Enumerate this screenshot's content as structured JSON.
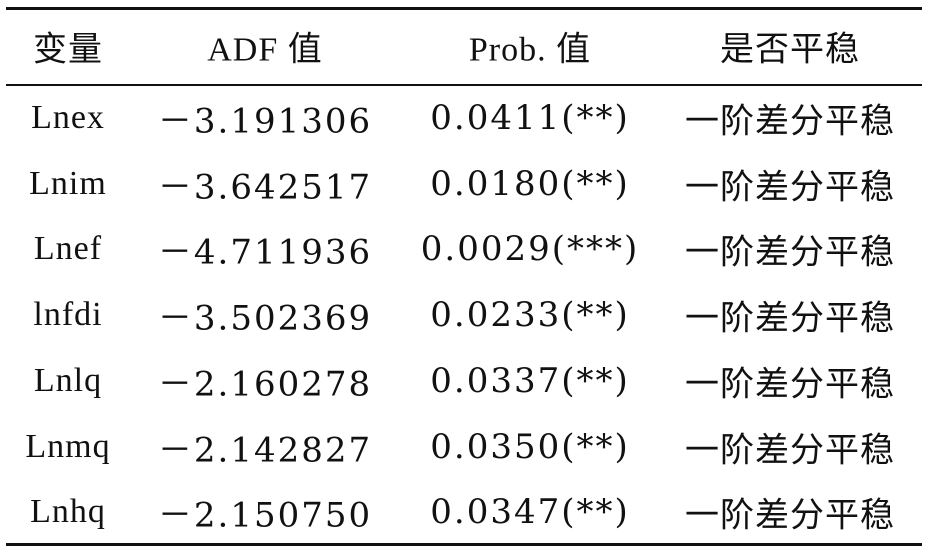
{
  "table": {
    "header": [
      "变量",
      "ADF 值",
      "Prob. 值",
      "是否平稳"
    ],
    "rows": [
      [
        "Lnex",
        "－3.191306",
        "0.0411(**)",
        "一阶差分平稳"
      ],
      [
        "Lnim",
        "－3.642517",
        "0.0180(**)",
        "一阶差分平稳"
      ],
      [
        "Lnef",
        "－4.711936",
        "0.0029(***)",
        "一阶差分平稳"
      ],
      [
        "lnfdi",
        "－3.502369",
        "0.0233(**)",
        "一阶差分平稳"
      ],
      [
        "Lnlq",
        "－2.160278",
        "0.0337(**)",
        "一阶差分平稳"
      ],
      [
        "Lnmq",
        "－2.142827",
        "0.0350(**)",
        "一阶差分平稳"
      ],
      [
        "Lnhq",
        "－2.150750",
        "0.0347(**)",
        "一阶差分平稳"
      ]
    ]
  }
}
